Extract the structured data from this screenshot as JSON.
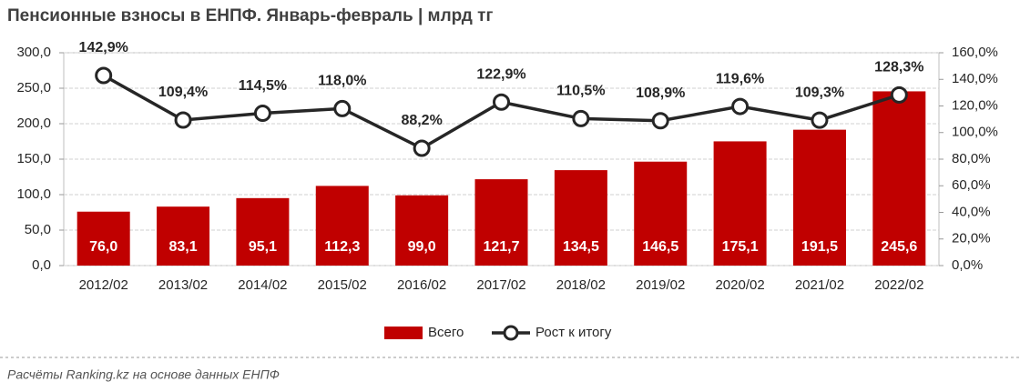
{
  "chart_data": {
    "type": "bar",
    "title": "Пенсионные взносы в ЕНПФ. Январь-февраль | млрд тг",
    "source": "Расчёты Ranking.kz на основе данных ЕНПФ",
    "categories": [
      "2012/02",
      "2013/02",
      "2014/02",
      "2015/02",
      "2016/02",
      "2017/02",
      "2018/02",
      "2019/02",
      "2020/02",
      "2021/02",
      "2022/02"
    ],
    "series": [
      {
        "name": "Всего",
        "type": "bar",
        "color": "#c00000",
        "values": [
          76.0,
          83.1,
          95.1,
          112.3,
          99.0,
          121.7,
          134.5,
          146.5,
          175.1,
          191.5,
          245.6
        ],
        "value_labels": [
          "76,0",
          "83,1",
          "95,1",
          "112,3",
          "99,0",
          "121,7",
          "134,5",
          "146,5",
          "175,1",
          "191,5",
          "245,6"
        ]
      },
      {
        "name": "Рост к итогу",
        "type": "line",
        "axis": "y2",
        "color": "#262626",
        "values": [
          142.9,
          109.4,
          114.5,
          118.0,
          88.2,
          122.9,
          110.5,
          108.9,
          119.6,
          109.3,
          128.3
        ],
        "value_labels": [
          "142,9%",
          "109,4%",
          "114,5%",
          "118,0%",
          "88,2%",
          "122,9%",
          "110,5%",
          "108,9%",
          "119,6%",
          "109,3%",
          "128,3%"
        ]
      }
    ],
    "ylim": [
      0,
      300
    ],
    "yticks": [
      {
        "value": 0,
        "label": "0,0"
      },
      {
        "value": 50,
        "label": "50,0"
      },
      {
        "value": 100,
        "label": "100,0"
      },
      {
        "value": 150,
        "label": "150,0"
      },
      {
        "value": 200,
        "label": "200,0"
      },
      {
        "value": 250,
        "label": "250,0"
      },
      {
        "value": 300,
        "label": "300,0"
      }
    ],
    "y2lim": [
      0,
      160
    ],
    "y2ticks": [
      {
        "value": 0,
        "label": "0,0%"
      },
      {
        "value": 20,
        "label": "20,0%"
      },
      {
        "value": 40,
        "label": "40,0%"
      },
      {
        "value": 60,
        "label": "60,0%"
      },
      {
        "value": 80,
        "label": "80,0%"
      },
      {
        "value": 100,
        "label": "100,0%"
      },
      {
        "value": 120,
        "label": "120,0%"
      },
      {
        "value": 140,
        "label": "140,0%"
      },
      {
        "value": 160,
        "label": "160,0%"
      }
    ],
    "grid": true,
    "legend": "bottom"
  }
}
